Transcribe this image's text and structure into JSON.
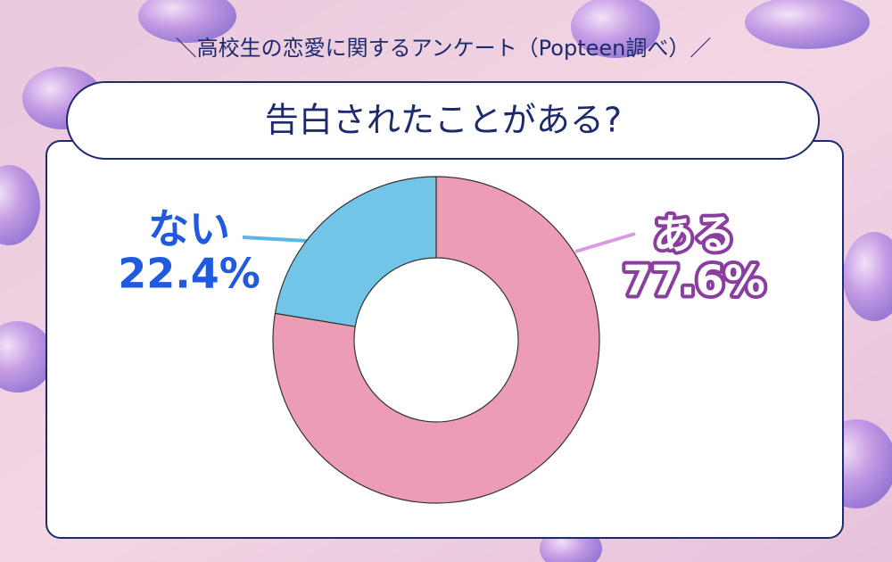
{
  "chart_data": {
    "type": "pie",
    "subtitle": "＼高校生の恋愛に関するアンケート（Popteen調べ）／",
    "title": "告白されたことがある?",
    "categories": [
      "ある",
      "ない"
    ],
    "values": [
      77.6,
      22.4
    ],
    "value_labels": [
      "77.6%",
      "22.4%"
    ],
    "colors": [
      "#ec9db5",
      "#72c5e6"
    ],
    "donut": true
  }
}
